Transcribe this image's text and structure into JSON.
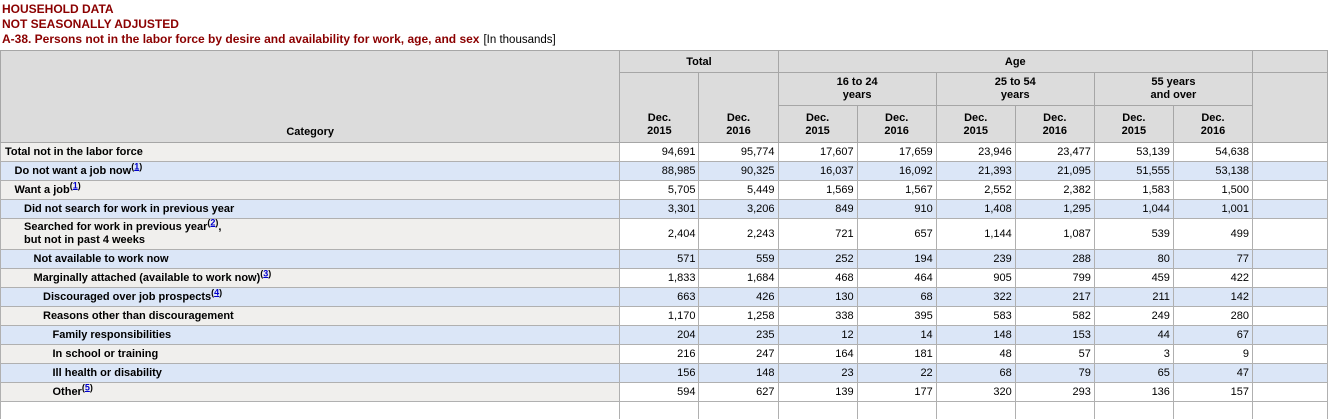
{
  "title": {
    "line1": "HOUSEHOLD DATA",
    "line2": "NOT SEASONALLY ADJUSTED",
    "line3": "A-38. Persons not in the labor force by desire and availability for work, age, and sex",
    "line3_suffix": "[In thousands]"
  },
  "colors": {
    "title_maroon": "#8b0000",
    "header_gray": "#dcdcdc",
    "row_blue": "#dbe6f7",
    "row_gray": "#f0efed",
    "footnote_link_blue": "#0000cc",
    "border_gray": "#a6a6a6"
  },
  "table": {
    "header": {
      "category_label": "Category",
      "total_label": "Total",
      "age_label": "Age",
      "age_groups": [
        {
          "line1": "16 to 24",
          "line2": "years"
        },
        {
          "line1": "25 to 54",
          "line2": "years"
        },
        {
          "line1": "55 years",
          "line2": "and over"
        }
      ],
      "periods": [
        {
          "month": "Dec.",
          "year": "2015"
        },
        {
          "month": "Dec.",
          "year": "2016"
        }
      ]
    },
    "rows": [
      {
        "label": "Total not in the labor force",
        "indent": 0,
        "footnote": null,
        "values": [
          "94,691",
          "95,774",
          "17,607",
          "17,659",
          "23,946",
          "23,477",
          "53,139",
          "54,638"
        ]
      },
      {
        "label": "Do not want a job now",
        "indent": 1,
        "footnote": "1",
        "values": [
          "88,985",
          "90,325",
          "16,037",
          "16,092",
          "21,393",
          "21,095",
          "51,555",
          "53,138"
        ]
      },
      {
        "label": "Want a job",
        "indent": 1,
        "footnote": "1",
        "values": [
          "5,705",
          "5,449",
          "1,569",
          "1,567",
          "2,552",
          "2,382",
          "1,583",
          "1,500"
        ]
      },
      {
        "label": "Did not search for work in previous year",
        "indent": 2,
        "footnote": null,
        "values": [
          "3,301",
          "3,206",
          "849",
          "910",
          "1,408",
          "1,295",
          "1,044",
          "1,001"
        ]
      },
      {
        "label": "Searched for work in previous year",
        "indent": 2,
        "footnote": "2",
        "suffix": ",",
        "label2": "but not in past 4 weeks",
        "values": [
          "2,404",
          "2,243",
          "721",
          "657",
          "1,144",
          "1,087",
          "539",
          "499"
        ]
      },
      {
        "label": "Not available to work now",
        "indent": 3,
        "footnote": null,
        "values": [
          "571",
          "559",
          "252",
          "194",
          "239",
          "288",
          "80",
          "77"
        ]
      },
      {
        "label": "Marginally attached (available to work now)",
        "indent": 3,
        "footnote": "3",
        "values": [
          "1,833",
          "1,684",
          "468",
          "464",
          "905",
          "799",
          "459",
          "422"
        ]
      },
      {
        "label": "Discouraged over job prospects",
        "indent": 4,
        "footnote": "4",
        "values": [
          "663",
          "426",
          "130",
          "68",
          "322",
          "217",
          "211",
          "142"
        ]
      },
      {
        "label": "Reasons other than discouragement",
        "indent": 4,
        "footnote": null,
        "values": [
          "1,170",
          "1,258",
          "338",
          "395",
          "583",
          "582",
          "249",
          "280"
        ]
      },
      {
        "label": "Family responsibilities",
        "indent": 5,
        "footnote": null,
        "values": [
          "204",
          "235",
          "12",
          "14",
          "148",
          "153",
          "44",
          "67"
        ]
      },
      {
        "label": "In school or training",
        "indent": 5,
        "footnote": null,
        "values": [
          "216",
          "247",
          "164",
          "181",
          "48",
          "57",
          "3",
          "9"
        ]
      },
      {
        "label": "Ill health or disability",
        "indent": 5,
        "footnote": null,
        "values": [
          "156",
          "148",
          "23",
          "22",
          "68",
          "79",
          "65",
          "47"
        ]
      },
      {
        "label": "Other",
        "indent": 5,
        "footnote": "5",
        "values": [
          "594",
          "627",
          "139",
          "177",
          "320",
          "293",
          "136",
          "157"
        ]
      }
    ]
  }
}
